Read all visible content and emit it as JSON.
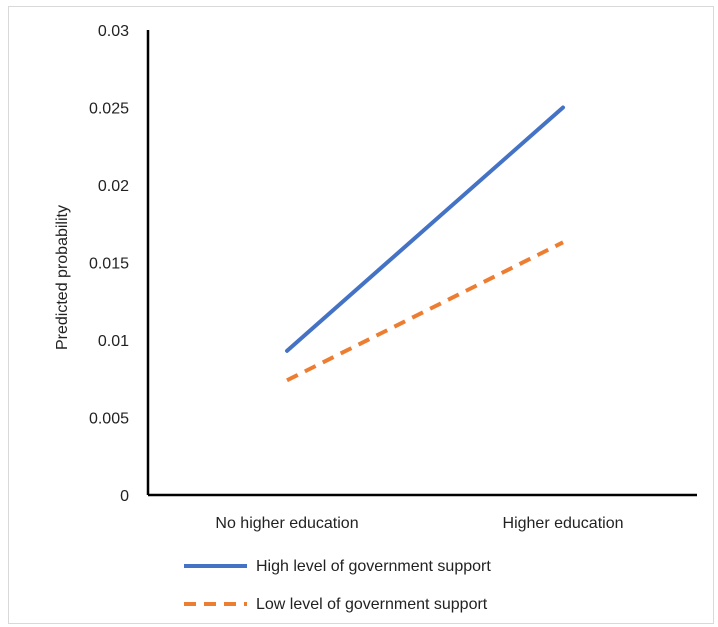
{
  "chart_data": {
    "type": "line",
    "categories": [
      "No higher education",
      "Higher education"
    ],
    "series": [
      {
        "name": "High level of government support",
        "values": [
          0.0093,
          0.025
        ],
        "color": "#4472C4",
        "dash": "solid"
      },
      {
        "name": "Low level of government support",
        "values": [
          0.0074,
          0.0163
        ],
        "color": "#ED7D31",
        "dash": "dashed"
      }
    ],
    "ylabel": "Predicted probability",
    "xlabel": "",
    "title": "",
    "ylim": [
      0,
      0.03
    ],
    "yticks": [
      "0",
      "0.005",
      "0.01",
      "0.015",
      "0.02",
      "0.025",
      "0.03"
    ],
    "grid": false,
    "legend_position": "bottom-left"
  }
}
